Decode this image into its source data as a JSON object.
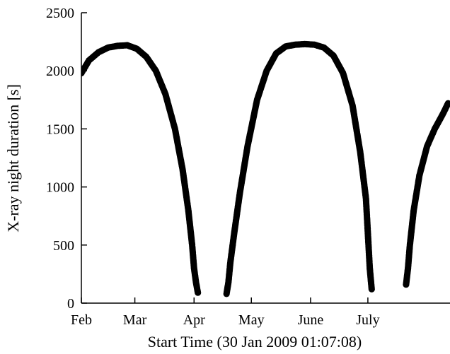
{
  "chart_data": {
    "type": "scatter",
    "title": "",
    "xlabel": "Start Time (30 Jan 2009 01:07:08)",
    "ylabel": "X-ray night duration [s]",
    "x_tick_labels": [
      "Feb",
      "Mar",
      "Apr",
      "May",
      "June",
      "July"
    ],
    "y_tick_labels": [
      "0",
      "500",
      "1000",
      "1500",
      "2000",
      "2500"
    ],
    "ylim": [
      0,
      2500
    ],
    "xlim": [
      "2009-02-01",
      "2009-08-13"
    ],
    "grid": false,
    "legend": "none",
    "marker_color": "#000000",
    "series": [
      {
        "x": [
          "2009-02-01",
          "2009-02-05",
          "2009-02-10",
          "2009-02-15",
          "2009-02-20",
          "2009-02-25",
          "2009-03-02",
          "2009-03-07",
          "2009-03-12",
          "2009-03-17",
          "2009-03-22",
          "2009-03-26",
          "2009-03-29",
          "2009-03-31",
          "2009-04-01",
          "2009-04-02",
          "2009-04-03"
        ],
        "y": [
          1980,
          2090,
          2160,
          2200,
          2215,
          2220,
          2190,
          2120,
          2000,
          1800,
          1500,
          1150,
          800,
          500,
          300,
          180,
          90
        ]
      },
      {
        "x": [
          "2009-04-18",
          "2009-04-19",
          "2009-04-20",
          "2009-04-22",
          "2009-04-25",
          "2009-04-29",
          "2009-05-04",
          "2009-05-09",
          "2009-05-14",
          "2009-05-19",
          "2009-05-24",
          "2009-05-29",
          "2009-06-03",
          "2009-06-08",
          "2009-06-13",
          "2009-06-18",
          "2009-06-23",
          "2009-06-27",
          "2009-06-30",
          "2009-07-01",
          "2009-07-02",
          "2009-07-03"
        ],
        "y": [
          80,
          180,
          350,
          600,
          950,
          1350,
          1750,
          2000,
          2150,
          2210,
          2225,
          2230,
          2225,
          2200,
          2130,
          1980,
          1700,
          1300,
          900,
          600,
          300,
          120
        ]
      },
      {
        "x": [
          "2009-07-21",
          "2009-07-22",
          "2009-07-23",
          "2009-07-25",
          "2009-07-28",
          "2009-08-01",
          "2009-08-05",
          "2009-08-09",
          "2009-08-12"
        ],
        "y": [
          160,
          300,
          500,
          800,
          1100,
          1350,
          1500,
          1620,
          1720
        ]
      }
    ]
  }
}
